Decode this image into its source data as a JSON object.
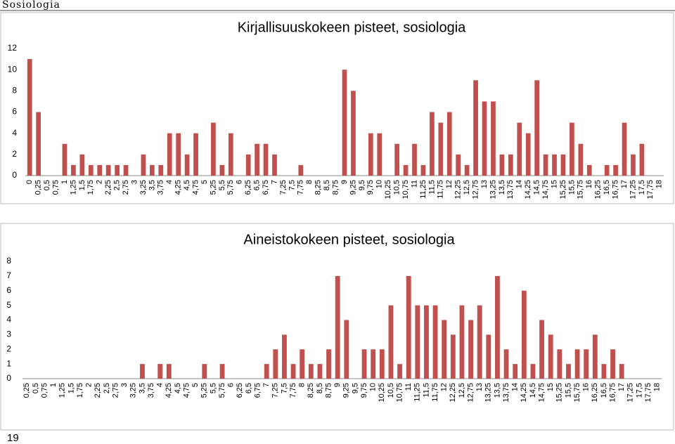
{
  "header": "Sosiologia",
  "page_number": "19",
  "chart_data": [
    {
      "type": "bar",
      "title": "Kirjallisuuskokeen pisteet, sosiologia",
      "color": "#c0504d",
      "categories": [
        "0",
        "0,25",
        "0,5",
        "0,75",
        "1",
        "1,25",
        "1,5",
        "1,75",
        "2",
        "2,25",
        "2,5",
        "2,75",
        "3",
        "3,25",
        "3,5",
        "3,75",
        "4",
        "4,25",
        "4,5",
        "4,75",
        "5",
        "5,25",
        "5,5",
        "5,75",
        "6",
        "6,25",
        "6,5",
        "6,75",
        "7",
        "7,25",
        "7,5",
        "7,75",
        "8",
        "8,25",
        "8,5",
        "8,75",
        "9",
        "9,25",
        "9,5",
        "9,75",
        "10",
        "10,25",
        "10,5",
        "10,75",
        "11",
        "11,25",
        "11,5",
        "11,75",
        "12",
        "12,25",
        "12,5",
        "12,75",
        "13",
        "13,25",
        "13,5",
        "13,75",
        "14",
        "14,25",
        "14,5",
        "14,75",
        "15",
        "15,25",
        "15,5",
        "15,75",
        "16",
        "16,25",
        "16,5",
        "16,75",
        "17",
        "17,25",
        "17,5",
        "17,75",
        "18"
      ],
      "values": [
        11,
        6,
        0,
        0,
        3,
        1,
        2,
        1,
        1,
        1,
        1,
        1,
        0,
        2,
        1,
        1,
        4,
        4,
        2,
        4,
        0,
        5,
        1,
        4,
        0,
        2,
        3,
        3,
        2,
        0,
        0,
        1,
        0,
        0,
        0,
        0,
        10,
        8,
        0,
        4,
        4,
        0,
        3,
        1,
        3,
        1,
        6,
        5,
        6,
        2,
        1,
        9,
        7,
        7,
        2,
        2,
        5,
        4,
        9,
        2,
        2,
        2,
        5,
        3,
        1,
        0,
        1,
        1,
        5,
        2,
        3,
        0,
        0
      ],
      "ylim": [
        0,
        12
      ],
      "yticks": [
        0,
        2,
        4,
        6,
        8,
        10,
        12
      ]
    },
    {
      "type": "bar",
      "title": "Aineistokokeen pisteet, sosiologia",
      "color": "#c0504d",
      "categories": [
        "0,25",
        "0,5",
        "0,75",
        "1",
        "1,25",
        "1,5",
        "1,75",
        "2",
        "2,25",
        "2,5",
        "2,75",
        "3",
        "3,25",
        "3,5",
        "3,75",
        "4",
        "4,25",
        "4,5",
        "4,75",
        "5",
        "5,25",
        "5,5",
        "5,75",
        "6",
        "6,25",
        "6,5",
        "6,75",
        "7",
        "7,25",
        "7,5",
        "7,75",
        "8",
        "8,25",
        "8,5",
        "8,75",
        "9",
        "9,25",
        "9,5",
        "9,75",
        "10",
        "10,25",
        "10,5",
        "10,75",
        "11",
        "11,25",
        "11,5",
        "11,75",
        "12",
        "12,25",
        "12,5",
        "12,75",
        "13",
        "13,25",
        "13,5",
        "13,75",
        "14",
        "14,25",
        "14,5",
        "14,75",
        "15",
        "15,25",
        "15,5",
        "15,75",
        "16",
        "16,25",
        "16,5",
        "16,75",
        "17",
        "17,25",
        "17,5",
        "17,75",
        "18"
      ],
      "values": [
        0,
        0,
        0,
        0,
        0,
        0,
        0,
        0,
        0,
        0,
        0,
        0,
        0,
        1,
        0,
        1,
        1,
        0,
        0,
        0,
        1,
        0,
        1,
        0,
        0,
        0,
        0,
        1,
        2,
        3,
        1,
        2,
        1,
        1,
        2,
        7,
        4,
        0,
        2,
        2,
        2,
        5,
        1,
        7,
        5,
        5,
        5,
        4,
        3,
        5,
        4,
        5,
        3,
        7,
        2,
        1,
        6,
        1,
        4,
        3,
        2,
        1,
        2,
        2,
        3,
        1,
        2,
        1,
        0,
        0,
        0,
        0
      ],
      "ylim": [
        0,
        8
      ],
      "yticks": [
        0,
        1,
        2,
        3,
        4,
        5,
        6,
        7,
        8
      ]
    }
  ]
}
